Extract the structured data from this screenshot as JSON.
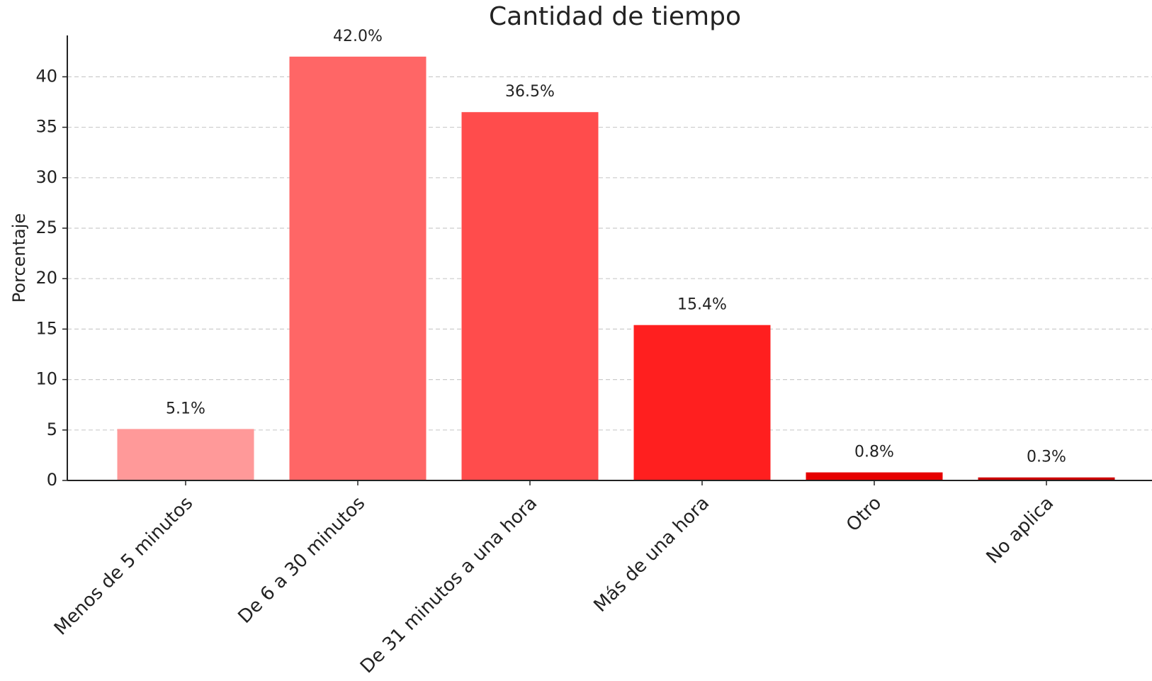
{
  "chart_data": {
    "type": "bar",
    "title": "Cantidad de tiempo",
    "y_label": "Porcentaje",
    "categories": [
      "Menos de 5 minutos",
      "De 6 a 30 minutos",
      "De 31 minutos a una hora",
      "Más de una hora",
      "Otro",
      "No aplica"
    ],
    "values": [
      5.1,
      42.0,
      36.5,
      15.4,
      0.8,
      0.3
    ],
    "value_labels": [
      "5.1%",
      "42.0%",
      "36.5%",
      "15.4%",
      "0.8%",
      "0.3%"
    ],
    "colors": [
      "#ff9999",
      "#ff6666",
      "#ff4c4c",
      "#ff1f1f",
      "#e60000",
      "#cc0000"
    ],
    "ylim": [
      0,
      44.1
    ],
    "yticks": [
      0,
      5,
      10,
      15,
      20,
      25,
      30,
      35,
      40
    ],
    "grid": true
  }
}
